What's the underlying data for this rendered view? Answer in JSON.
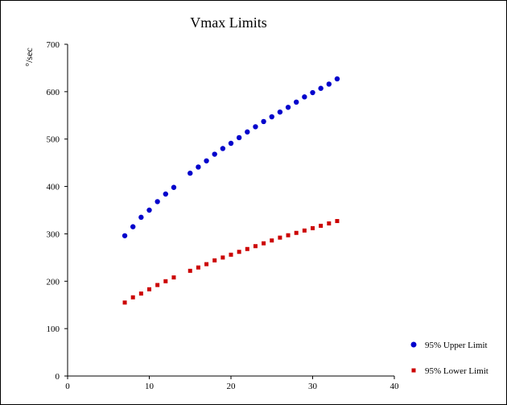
{
  "chart_data": {
    "type": "scatter",
    "title": "Vmax Limits",
    "xlabel": "",
    "ylabel": "°/sec",
    "xlim": [
      0,
      40
    ],
    "ylim": [
      0,
      700
    ],
    "x_ticks": [
      "0",
      "10",
      "20",
      "30",
      "40"
    ],
    "y_ticks": [
      "0",
      "100",
      "200",
      "300",
      "400",
      "500",
      "600",
      "700"
    ],
    "grid": false,
    "legend_position": "bottom-right",
    "series": [
      {
        "name": "95% Upper Limit",
        "color": "#0000cc",
        "marker": "circle",
        "x": [
          7,
          8,
          9,
          10,
          11,
          12,
          13,
          15,
          16,
          17,
          18,
          19,
          20,
          21,
          22,
          23,
          24,
          25,
          26,
          27,
          28,
          29,
          30,
          31,
          32,
          33
        ],
        "y": [
          296,
          315,
          335,
          350,
          368,
          384,
          398,
          428,
          441,
          454,
          468,
          480,
          491,
          503,
          515,
          526,
          537,
          547,
          557,
          567,
          578,
          589,
          598,
          607,
          616,
          627
        ]
      },
      {
        "name": "95% Lower Limit",
        "color": "#cc0000",
        "marker": "square",
        "x": [
          7,
          8,
          9,
          10,
          11,
          12,
          13,
          15,
          16,
          17,
          18,
          19,
          20,
          21,
          22,
          23,
          24,
          25,
          26,
          27,
          28,
          29,
          30,
          31,
          32,
          33
        ],
        "y": [
          155,
          166,
          174,
          183,
          192,
          200,
          208,
          222,
          229,
          236,
          244,
          250,
          256,
          262,
          268,
          274,
          280,
          286,
          292,
          297,
          302,
          307,
          312,
          317,
          322,
          327
        ]
      }
    ]
  }
}
